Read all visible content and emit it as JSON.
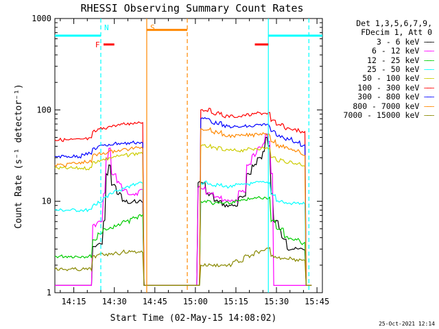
{
  "chart_data": {
    "type": "line",
    "title": "RHESSI Observing Summary Count Rates",
    "xlabel": "Start Time (02-May-15 14:08:02)",
    "ylabel": "Count Rate (s⁻¹ detector⁻¹)",
    "y_scale": "log",
    "ylim": [
      1,
      1000
    ],
    "xlim": [
      "14:08",
      "15:47"
    ],
    "x_ticks": [
      "14:15",
      "14:30",
      "14:45",
      "15:00",
      "15:15",
      "15:30",
      "15:45"
    ],
    "y_ticks": [
      "1",
      "10",
      "100",
      "1000"
    ],
    "legend": {
      "header": [
        "Det 1,3,5,6,7,9,",
        "FDecim 1, Att 0"
      ],
      "placement": "right"
    },
    "series": [
      {
        "name": "3 - 6 keV",
        "color": "#000000",
        "x": [
          "14:08",
          "14:13",
          "14:18",
          "14:22",
          "14:24",
          "14:26",
          "14:27",
          "14:28",
          "14:29",
          "14:31",
          "14:33",
          "14:35",
          "14:37",
          "14:39",
          "14:41",
          "14:56",
          "14:59",
          "15:01",
          "15:04",
          "15:07",
          "15:10",
          "15:13",
          "15:16",
          "15:19",
          "15:21",
          "15:23",
          "15:25",
          "15:26",
          "15:27",
          "15:28",
          "15:29",
          "15:31",
          "15:32",
          "15:34",
          "15:36",
          "15:38",
          "15:41",
          "15:43"
        ],
        "y": [
          1.2,
          1.2,
          1.2,
          3.2,
          3.4,
          6,
          20,
          25,
          15,
          12,
          10,
          9.5,
          10,
          10,
          1.2,
          1.2,
          1.2,
          16,
          12,
          10,
          9,
          9,
          11,
          20,
          25,
          30,
          35,
          50,
          40,
          12,
          6,
          5,
          4,
          3,
          3,
          3,
          1.2,
          1.2
        ]
      },
      {
        "name": "6 - 12 keV",
        "color": "#ff00ff",
        "x": [
          "14:08",
          "14:13",
          "14:18",
          "14:22",
          "14:24",
          "14:26",
          "14:27",
          "14:28",
          "14:29",
          "14:31",
          "14:33",
          "14:35",
          "14:37",
          "14:39",
          "14:41",
          "14:56",
          "14:59",
          "15:01",
          "15:04",
          "15:07",
          "15:10",
          "15:13",
          "15:16",
          "15:19",
          "15:21",
          "15:23",
          "15:25",
          "15:26",
          "15:27",
          "15:28",
          "15:29",
          "15:31",
          "15:32",
          "15:34",
          "15:36",
          "15:38",
          "15:41",
          "15:43"
        ],
        "y": [
          1.2,
          1.2,
          1.2,
          5.5,
          6,
          12,
          30,
          38,
          20,
          16,
          13,
          12,
          12,
          13,
          1.2,
          1.2,
          1.2,
          14,
          12,
          11,
          10,
          10,
          13,
          25,
          32,
          38,
          42,
          55,
          45,
          20,
          1.2,
          1.2,
          1.2,
          1.2,
          1.2,
          1.2,
          1.2,
          1.2
        ]
      },
      {
        "name": "12 - 25 keV",
        "color": "#00cc00",
        "x": [
          "14:08",
          "14:13",
          "14:18",
          "14:22",
          "14:24",
          "14:26",
          "14:28",
          "14:30",
          "14:33",
          "14:36",
          "14:39",
          "14:41",
          "14:56",
          "14:59",
          "15:02",
          "15:06",
          "15:10",
          "15:14",
          "15:18",
          "15:22",
          "15:26",
          "15:28",
          "15:30",
          "15:33",
          "15:36",
          "15:39",
          "15:41",
          "15:43"
        ],
        "y": [
          2.5,
          2.5,
          2.5,
          3.8,
          4.5,
          5,
          5,
          5.5,
          6,
          6.5,
          7,
          1.2,
          1.2,
          1.2,
          10,
          9.5,
          9.5,
          10,
          10.5,
          11,
          11,
          6,
          5,
          4,
          3.8,
          3.5,
          1.2,
          1.2
        ]
      },
      {
        "name": "25 - 50 keV",
        "color": "#00ffff",
        "x": [
          "14:08",
          "14:13",
          "14:18",
          "14:22",
          "14:24",
          "14:26",
          "14:28",
          "14:30",
          "14:33",
          "14:36",
          "14:39",
          "14:41",
          "14:56",
          "14:59",
          "15:02",
          "15:06",
          "15:10",
          "15:14",
          "15:18",
          "15:22",
          "15:26",
          "15:28",
          "15:30",
          "15:33",
          "15:36",
          "15:39",
          "15:41",
          "15:43"
        ],
        "y": [
          8,
          8,
          8,
          9,
          10,
          11,
          12,
          13,
          14,
          15,
          16,
          1.2,
          1.2,
          1.2,
          16,
          15,
          14.5,
          15,
          15.5,
          16,
          16,
          12,
          10,
          9.5,
          9.5,
          9.5,
          1.2,
          1.2
        ]
      },
      {
        "name": "50 - 100 keV",
        "color": "#cccc00",
        "x": [
          "14:08",
          "14:13",
          "14:18",
          "14:22",
          "14:24",
          "14:26",
          "14:28",
          "14:30",
          "14:33",
          "14:36",
          "14:39",
          "14:41",
          "14:56",
          "14:59",
          "15:02",
          "15:06",
          "15:10",
          "15:14",
          "15:18",
          "15:22",
          "15:26",
          "15:28",
          "15:30",
          "15:33",
          "15:36",
          "15:39",
          "15:41",
          "15:43"
        ],
        "y": [
          23,
          23,
          23,
          27,
          28,
          29,
          30,
          31,
          32,
          33,
          34,
          1.2,
          1.2,
          1.2,
          40,
          38,
          36,
          36,
          37,
          38,
          38,
          30,
          28,
          27,
          26,
          25,
          1.2,
          1.2
        ]
      },
      {
        "name": "100 - 300 keV",
        "color": "#ff0000",
        "x": [
          "14:08",
          "14:13",
          "14:18",
          "14:22",
          "14:24",
          "14:26",
          "14:28",
          "14:30",
          "14:33",
          "14:36",
          "14:39",
          "14:41",
          "14:56",
          "14:59",
          "15:02",
          "15:06",
          "15:10",
          "15:14",
          "15:18",
          "15:22",
          "15:26",
          "15:28",
          "15:30",
          "15:33",
          "15:36",
          "15:39",
          "15:41",
          "15:43"
        ],
        "y": [
          47,
          47,
          48,
          58,
          62,
          64,
          66,
          68,
          70,
          72,
          74,
          1.2,
          1.2,
          1.2,
          100,
          92,
          85,
          85,
          88,
          92,
          92,
          75,
          68,
          63,
          60,
          56,
          1.2,
          1.2
        ]
      },
      {
        "name": "300 - 800 keV",
        "color": "#0000ff",
        "x": [
          "14:08",
          "14:13",
          "14:18",
          "14:22",
          "14:24",
          "14:26",
          "14:28",
          "14:30",
          "14:33",
          "14:36",
          "14:39",
          "14:41",
          "14:56",
          "14:59",
          "15:02",
          "15:06",
          "15:10",
          "15:14",
          "15:18",
          "15:22",
          "15:26",
          "15:28",
          "15:30",
          "15:33",
          "15:36",
          "15:39",
          "15:41",
          "15:43"
        ],
        "y": [
          31,
          31,
          33,
          38,
          40,
          41,
          42,
          43,
          43,
          44,
          44,
          1.2,
          1.2,
          1.2,
          80,
          72,
          66,
          65,
          66,
          68,
          68,
          58,
          52,
          48,
          45,
          40,
          1.2,
          1.2
        ]
      },
      {
        "name": "800 - 7000 keV",
        "color": "#ff8800",
        "x": [
          "14:08",
          "14:13",
          "14:18",
          "14:22",
          "14:24",
          "14:26",
          "14:28",
          "14:30",
          "14:33",
          "14:36",
          "14:39",
          "14:41",
          "14:56",
          "14:59",
          "15:02",
          "15:06",
          "15:10",
          "15:14",
          "15:18",
          "15:22",
          "15:26",
          "15:28",
          "15:30",
          "15:33",
          "15:36",
          "15:39",
          "15:41",
          "15:43"
        ],
        "y": [
          25,
          26,
          27,
          32,
          33,
          34,
          35,
          36,
          37,
          38,
          39,
          1.2,
          1.2,
          1.2,
          62,
          57,
          52,
          52,
          53,
          55,
          55,
          45,
          40,
          38,
          36,
          33,
          1.2,
          1.2
        ]
      },
      {
        "name": "7000 - 15000 keV",
        "color": "#888800",
        "x": [
          "14:08",
          "14:13",
          "14:18",
          "14:22",
          "14:24",
          "14:26",
          "14:28",
          "14:30",
          "14:33",
          "14:36",
          "14:39",
          "14:41",
          "14:56",
          "14:59",
          "15:02",
          "15:06",
          "15:10",
          "15:14",
          "15:18",
          "15:22",
          "15:26",
          "15:28",
          "15:30",
          "15:33",
          "15:36",
          "15:39",
          "15:41",
          "15:43"
        ],
        "y": [
          1.8,
          1.8,
          1.8,
          2.5,
          2.6,
          2.6,
          2.7,
          2.7,
          2.8,
          2.8,
          2.8,
          1.2,
          1.2,
          1.2,
          2,
          2,
          2,
          2.2,
          2.5,
          2.8,
          3,
          2.5,
          2.4,
          2.4,
          2.3,
          2.3,
          1.2,
          1.2
        ]
      }
    ],
    "markers": [
      {
        "label": "N",
        "color": "#00ffff",
        "x": "14:25",
        "style": "dashed"
      },
      {
        "label": "S",
        "color": "#ff8800",
        "x": "14:42",
        "style": "solid"
      },
      {
        "label": "",
        "color": "#ff8800",
        "x": "14:57",
        "style": "dashed"
      },
      {
        "label": "",
        "color": "#00ffff",
        "x": "15:27",
        "style": "solid"
      },
      {
        "label": "",
        "color": "#00ffff",
        "x": "15:42",
        "style": "dashed"
      }
    ],
    "bars": [
      {
        "label": "",
        "color": "#00ffff",
        "x": [
          "14:08",
          "14:25"
        ],
        "y": 650
      },
      {
        "label": "F",
        "color": "#ff0000",
        "x": [
          "14:26",
          "14:30"
        ],
        "y": 520
      },
      {
        "label": "",
        "color": "#ff8800",
        "x": [
          "14:42",
          "14:57"
        ],
        "y": 750
      },
      {
        "label": "",
        "color": "#ff0000",
        "x": [
          "15:22",
          "15:27"
        ],
        "y": 520
      },
      {
        "label": "",
        "color": "#00ffff",
        "x": [
          "15:27",
          "15:47"
        ],
        "y": 650
      }
    ]
  },
  "timestamp": "25-Oct-2021 12:14"
}
